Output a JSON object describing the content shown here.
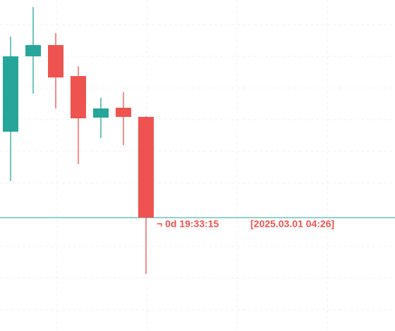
{
  "chart_data": {
    "type": "candlestick",
    "categories": [
      null,
      null,
      null,
      null,
      null,
      null,
      null
    ],
    "open": [
      283,
      390,
      406,
      362,
      303,
      317,
      304
    ],
    "high": [
      418,
      460,
      423,
      376,
      331,
      339,
      305
    ],
    "low": [
      213,
      337,
      316,
      237,
      274,
      264,
      81
    ],
    "close": [
      390,
      406,
      360,
      302,
      316,
      304,
      161
    ],
    "up_color": "#26a69a",
    "down_color": "#ef5350",
    "ylim": [
      0,
      470
    ],
    "price_line": {
      "value": 161,
      "color": "#26a69a"
    },
    "countdown": "¬ 0d 19:33:15",
    "timestamp": "[2025.03.01 04:26]",
    "label_color": "#ef5350"
  }
}
